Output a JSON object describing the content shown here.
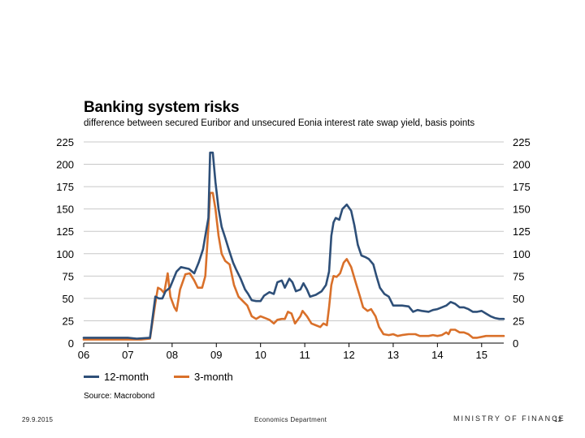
{
  "slide": {
    "date": "29.9.2015",
    "department": "Economics Department",
    "organization": "MINISTRY OF FINANCE",
    "page_number": "12"
  },
  "chart_data": {
    "type": "line",
    "title": "Banking system risks",
    "subtitle": "difference between secured Euribor and unsecured Eonia interest rate swap yield, basis points",
    "source": "Source: Macrobond",
    "x_tick_labels": [
      "06",
      "07",
      "08",
      "09",
      "10",
      "11",
      "12",
      "13",
      "14",
      "15"
    ],
    "x_tick_values": [
      2006,
      2007,
      2008,
      2009,
      2010,
      2011,
      2012,
      2013,
      2014,
      2015
    ],
    "xlim": [
      2006,
      2015.5
    ],
    "ylim": [
      0,
      225
    ],
    "y_ticks": [
      0,
      25,
      50,
      75,
      100,
      125,
      150,
      175,
      200,
      225
    ],
    "grid": true,
    "legend_position": "bottom-left",
    "series": [
      {
        "name": "12-month",
        "color": "#2e4f78",
        "points": [
          [
            2006.0,
            6
          ],
          [
            2006.5,
            6
          ],
          [
            2007.0,
            6
          ],
          [
            2007.2,
            5
          ],
          [
            2007.5,
            6
          ],
          [
            2007.62,
            52
          ],
          [
            2007.7,
            50
          ],
          [
            2007.78,
            50
          ],
          [
            2007.85,
            58
          ],
          [
            2007.95,
            62
          ],
          [
            2008.1,
            80
          ],
          [
            2008.2,
            85
          ],
          [
            2008.38,
            83
          ],
          [
            2008.5,
            78
          ],
          [
            2008.6,
            90
          ],
          [
            2008.7,
            105
          ],
          [
            2008.75,
            120
          ],
          [
            2008.82,
            140
          ],
          [
            2008.86,
            213
          ],
          [
            2008.92,
            213
          ],
          [
            2008.98,
            180
          ],
          [
            2009.05,
            150
          ],
          [
            2009.12,
            130
          ],
          [
            2009.2,
            118
          ],
          [
            2009.28,
            105
          ],
          [
            2009.38,
            90
          ],
          [
            2009.45,
            82
          ],
          [
            2009.55,
            72
          ],
          [
            2009.65,
            60
          ],
          [
            2009.72,
            55
          ],
          [
            2009.8,
            48
          ],
          [
            2009.9,
            47
          ],
          [
            2010.0,
            47
          ],
          [
            2010.08,
            53
          ],
          [
            2010.2,
            57
          ],
          [
            2010.3,
            55
          ],
          [
            2010.38,
            68
          ],
          [
            2010.48,
            70
          ],
          [
            2010.55,
            62
          ],
          [
            2010.65,
            72
          ],
          [
            2010.72,
            68
          ],
          [
            2010.8,
            58
          ],
          [
            2010.9,
            60
          ],
          [
            2010.97,
            67
          ],
          [
            2011.05,
            60
          ],
          [
            2011.12,
            52
          ],
          [
            2011.25,
            54
          ],
          [
            2011.38,
            58
          ],
          [
            2011.48,
            65
          ],
          [
            2011.55,
            80
          ],
          [
            2011.6,
            120
          ],
          [
            2011.65,
            135
          ],
          [
            2011.7,
            140
          ],
          [
            2011.78,
            138
          ],
          [
            2011.85,
            150
          ],
          [
            2011.95,
            155
          ],
          [
            2012.05,
            148
          ],
          [
            2012.12,
            132
          ],
          [
            2012.2,
            110
          ],
          [
            2012.28,
            98
          ],
          [
            2012.38,
            96
          ],
          [
            2012.45,
            94
          ],
          [
            2012.55,
            88
          ],
          [
            2012.62,
            75
          ],
          [
            2012.7,
            62
          ],
          [
            2012.8,
            55
          ],
          [
            2012.9,
            52
          ],
          [
            2013.0,
            42
          ],
          [
            2013.2,
            42
          ],
          [
            2013.35,
            41
          ],
          [
            2013.45,
            35
          ],
          [
            2013.55,
            37
          ],
          [
            2013.65,
            36
          ],
          [
            2013.8,
            35
          ],
          [
            2013.9,
            37
          ],
          [
            2014.0,
            38
          ],
          [
            2014.1,
            40
          ],
          [
            2014.2,
            42
          ],
          [
            2014.3,
            46
          ],
          [
            2014.4,
            44
          ],
          [
            2014.5,
            40
          ],
          [
            2014.6,
            40
          ],
          [
            2014.7,
            38
          ],
          [
            2014.8,
            35
          ],
          [
            2014.9,
            35
          ],
          [
            2015.0,
            36
          ],
          [
            2015.1,
            33
          ],
          [
            2015.2,
            30
          ],
          [
            2015.3,
            28
          ],
          [
            2015.4,
            27
          ],
          [
            2015.5,
            27
          ]
        ]
      },
      {
        "name": "3-month",
        "color": "#d9702a",
        "points": [
          [
            2006.0,
            4
          ],
          [
            2006.5,
            4
          ],
          [
            2007.0,
            4
          ],
          [
            2007.3,
            4
          ],
          [
            2007.5,
            5
          ],
          [
            2007.62,
            45
          ],
          [
            2007.68,
            62
          ],
          [
            2007.75,
            60
          ],
          [
            2007.82,
            56
          ],
          [
            2007.9,
            78
          ],
          [
            2007.96,
            52
          ],
          [
            2008.05,
            40
          ],
          [
            2008.1,
            36
          ],
          [
            2008.18,
            60
          ],
          [
            2008.3,
            77
          ],
          [
            2008.4,
            78
          ],
          [
            2008.5,
            70
          ],
          [
            2008.58,
            62
          ],
          [
            2008.68,
            62
          ],
          [
            2008.75,
            75
          ],
          [
            2008.82,
            130
          ],
          [
            2008.86,
            168
          ],
          [
            2008.92,
            168
          ],
          [
            2008.98,
            150
          ],
          [
            2009.05,
            120
          ],
          [
            2009.12,
            100
          ],
          [
            2009.2,
            92
          ],
          [
            2009.3,
            88
          ],
          [
            2009.4,
            65
          ],
          [
            2009.5,
            52
          ],
          [
            2009.6,
            47
          ],
          [
            2009.7,
            42
          ],
          [
            2009.8,
            30
          ],
          [
            2009.9,
            27
          ],
          [
            2010.0,
            30
          ],
          [
            2010.1,
            28
          ],
          [
            2010.2,
            26
          ],
          [
            2010.3,
            22
          ],
          [
            2010.38,
            26
          ],
          [
            2010.48,
            27
          ],
          [
            2010.55,
            27
          ],
          [
            2010.62,
            35
          ],
          [
            2010.7,
            33
          ],
          [
            2010.78,
            22
          ],
          [
            2010.9,
            30
          ],
          [
            2010.95,
            36
          ],
          [
            2011.05,
            30
          ],
          [
            2011.15,
            22
          ],
          [
            2011.25,
            20
          ],
          [
            2011.35,
            18
          ],
          [
            2011.42,
            22
          ],
          [
            2011.5,
            20
          ],
          [
            2011.55,
            40
          ],
          [
            2011.6,
            65
          ],
          [
            2011.65,
            75
          ],
          [
            2011.72,
            74
          ],
          [
            2011.8,
            78
          ],
          [
            2011.88,
            90
          ],
          [
            2011.95,
            94
          ],
          [
            2012.05,
            85
          ],
          [
            2012.15,
            68
          ],
          [
            2012.25,
            52
          ],
          [
            2012.32,
            40
          ],
          [
            2012.42,
            36
          ],
          [
            2012.5,
            38
          ],
          [
            2012.6,
            30
          ],
          [
            2012.68,
            18
          ],
          [
            2012.78,
            10
          ],
          [
            2012.9,
            9
          ],
          [
            2013.0,
            10
          ],
          [
            2013.1,
            8
          ],
          [
            2013.2,
            9
          ],
          [
            2013.35,
            10
          ],
          [
            2013.5,
            10
          ],
          [
            2013.6,
            8
          ],
          [
            2013.8,
            8
          ],
          [
            2013.9,
            9
          ],
          [
            2014.0,
            8
          ],
          [
            2014.1,
            9
          ],
          [
            2014.2,
            12
          ],
          [
            2014.25,
            10
          ],
          [
            2014.3,
            15
          ],
          [
            2014.4,
            15
          ],
          [
            2014.5,
            12
          ],
          [
            2014.6,
            12
          ],
          [
            2014.7,
            10
          ],
          [
            2014.8,
            6
          ],
          [
            2014.9,
            6
          ],
          [
            2015.0,
            7
          ],
          [
            2015.1,
            8
          ],
          [
            2015.3,
            8
          ],
          [
            2015.5,
            8
          ]
        ]
      }
    ]
  }
}
